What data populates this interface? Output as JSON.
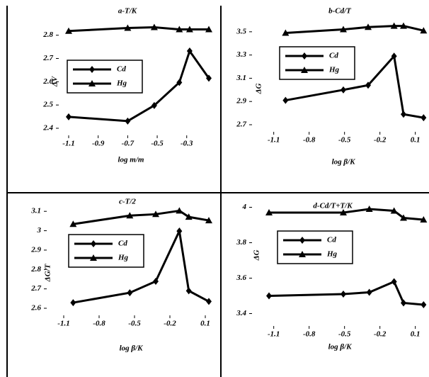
{
  "chart_data": [
    {
      "type": "line",
      "title": "a-T/K",
      "xlabel": "log m/m",
      "ylabel": "ΔV",
      "x": [
        -1.1,
        -0.7,
        -0.52,
        -0.35,
        -0.28,
        -0.15
      ],
      "series": [
        {
          "name": "Cd",
          "marker": "diamond",
          "color": "#000000",
          "values": [
            2.449,
            2.431,
            2.498,
            2.597,
            2.732,
            2.615
          ]
        },
        {
          "name": "Hg",
          "marker": "triangle",
          "color": "#000000",
          "values": [
            2.818,
            2.831,
            2.834,
            2.825,
            2.825,
            2.825
          ]
        }
      ],
      "xlim": [
        -1.1,
        -0.15
      ],
      "xticks": [
        -1.1,
        -0.9,
        -0.7,
        -0.5,
        -0.3
      ],
      "ylim": [
        2.4,
        2.86
      ],
      "yticks": [
        2.4,
        2.5,
        2.6,
        2.7,
        2.8
      ]
    },
    {
      "type": "line",
      "title": "b-Cd/T",
      "xlabel": "log β/K",
      "ylabel": "ΔG",
      "x": [
        -1.0,
        -0.51,
        -0.3,
        -0.08,
        0.0,
        0.17
      ],
      "series": [
        {
          "name": "Cd",
          "marker": "diamond",
          "color": "#000000",
          "values": [
            2.91,
            3.0,
            3.04,
            3.29,
            2.79,
            2.76
          ]
        },
        {
          "name": "Hg",
          "marker": "triangle",
          "color": "#000000",
          "values": [
            3.49,
            3.52,
            3.54,
            3.55,
            3.55,
            3.51
          ]
        }
      ],
      "xlim": [
        -1.2,
        0.18
      ],
      "xticks": [
        -1.1,
        -0.8,
        -0.5,
        -0.2,
        0.1
      ],
      "ylim": [
        2.7,
        3.56
      ],
      "yticks": [
        2.7,
        2.9,
        3.1,
        3.3,
        3.5
      ]
    },
    {
      "type": "line",
      "title": "c-T/2",
      "xlabel": "log β/K",
      "ylabel": "ΔG/T",
      "x": [
        -1.02,
        -0.54,
        -0.32,
        -0.12,
        -0.04,
        0.13
      ],
      "series": [
        {
          "name": "Cd",
          "marker": "diamond",
          "color": "#000000",
          "values": [
            2.629,
            2.68,
            2.739,
            2.998,
            2.69,
            2.635
          ]
        },
        {
          "name": "Hg",
          "marker": "triangle",
          "color": "#000000",
          "values": [
            3.034,
            3.078,
            3.085,
            3.103,
            3.071,
            3.053
          ]
        }
      ],
      "xlim": [
        -1.16,
        0.16
      ],
      "xticks": [
        -1.1,
        -0.8,
        -0.5,
        -0.2,
        0.1
      ],
      "ylim": [
        2.6,
        3.13
      ],
      "yticks": [
        2.6,
        2.7,
        2.8,
        2.9,
        3,
        3.1
      ]
    },
    {
      "type": "line",
      "title": "d-Cd/T+T/K",
      "xlabel": "log β/K",
      "ylabel": "ΔG",
      "x": [
        -1.14,
        -0.51,
        -0.29,
        -0.08,
        0.0,
        0.17
      ],
      "series": [
        {
          "name": "Cd",
          "marker": "diamond",
          "color": "#000000",
          "values": [
            3.5,
            3.51,
            3.52,
            3.58,
            3.46,
            3.45
          ]
        },
        {
          "name": "Hg",
          "marker": "triangle",
          "color": "#000000",
          "values": [
            3.97,
            3.97,
            3.99,
            3.98,
            3.94,
            3.93
          ]
        }
      ],
      "xlim": [
        -1.2,
        0.18
      ],
      "xticks": [
        -1.1,
        -0.8,
        -0.5,
        -0.2,
        0.1
      ],
      "ylim": [
        3.37,
        4.01
      ],
      "yticks": [
        3.4,
        3.6,
        3.8,
        4
      ]
    }
  ]
}
